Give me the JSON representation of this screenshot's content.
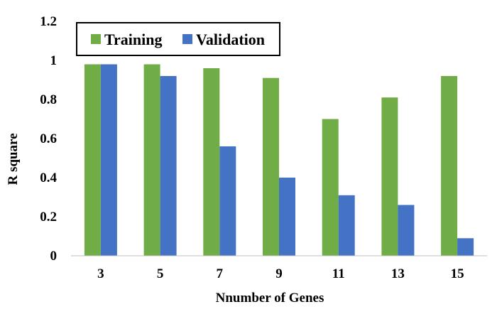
{
  "chart_data": {
    "type": "bar",
    "title": "",
    "xlabel": "Nnumber of Genes",
    "ylabel": "R square",
    "categories": [
      "3",
      "5",
      "7",
      "9",
      "11",
      "13",
      "15"
    ],
    "series": [
      {
        "name": "Training",
        "color": "#70ad47",
        "values": [
          0.98,
          0.98,
          0.96,
          0.91,
          0.7,
          0.81,
          0.92
        ]
      },
      {
        "name": "Validation",
        "color": "#4472c4",
        "values": [
          0.98,
          0.92,
          0.56,
          0.4,
          0.31,
          0.26,
          0.09
        ]
      }
    ],
    "ylim": [
      0,
      1.2
    ],
    "yticks": [
      "0",
      "0.2",
      "0.4",
      "0.6",
      "0.8",
      "1",
      "1.2"
    ],
    "grid": false,
    "legend_position": "top-left"
  }
}
